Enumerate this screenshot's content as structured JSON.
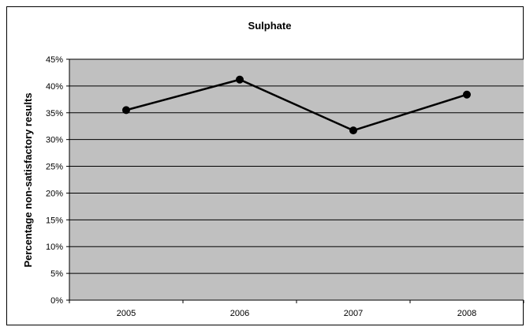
{
  "chart_data": {
    "type": "line",
    "title": "Sulphate",
    "xlabel": "",
    "ylabel": "Percentage non-satisfactory results",
    "categories": [
      "2005",
      "2006",
      "2007",
      "2008"
    ],
    "series": [
      {
        "values": [
          35.5,
          41.2,
          31.7,
          38.4
        ]
      }
    ],
    "ylim": [
      0,
      45
    ],
    "yticks": [
      "0%",
      "5%",
      "10%",
      "15%",
      "20%",
      "25%",
      "30%",
      "35%",
      "40%",
      "45%"
    ],
    "grid": true,
    "legend": "none",
    "colors": {
      "plot_background": "#c0c0c0",
      "line": "#000000",
      "marker": "#000000",
      "gridline": "#000000"
    }
  }
}
